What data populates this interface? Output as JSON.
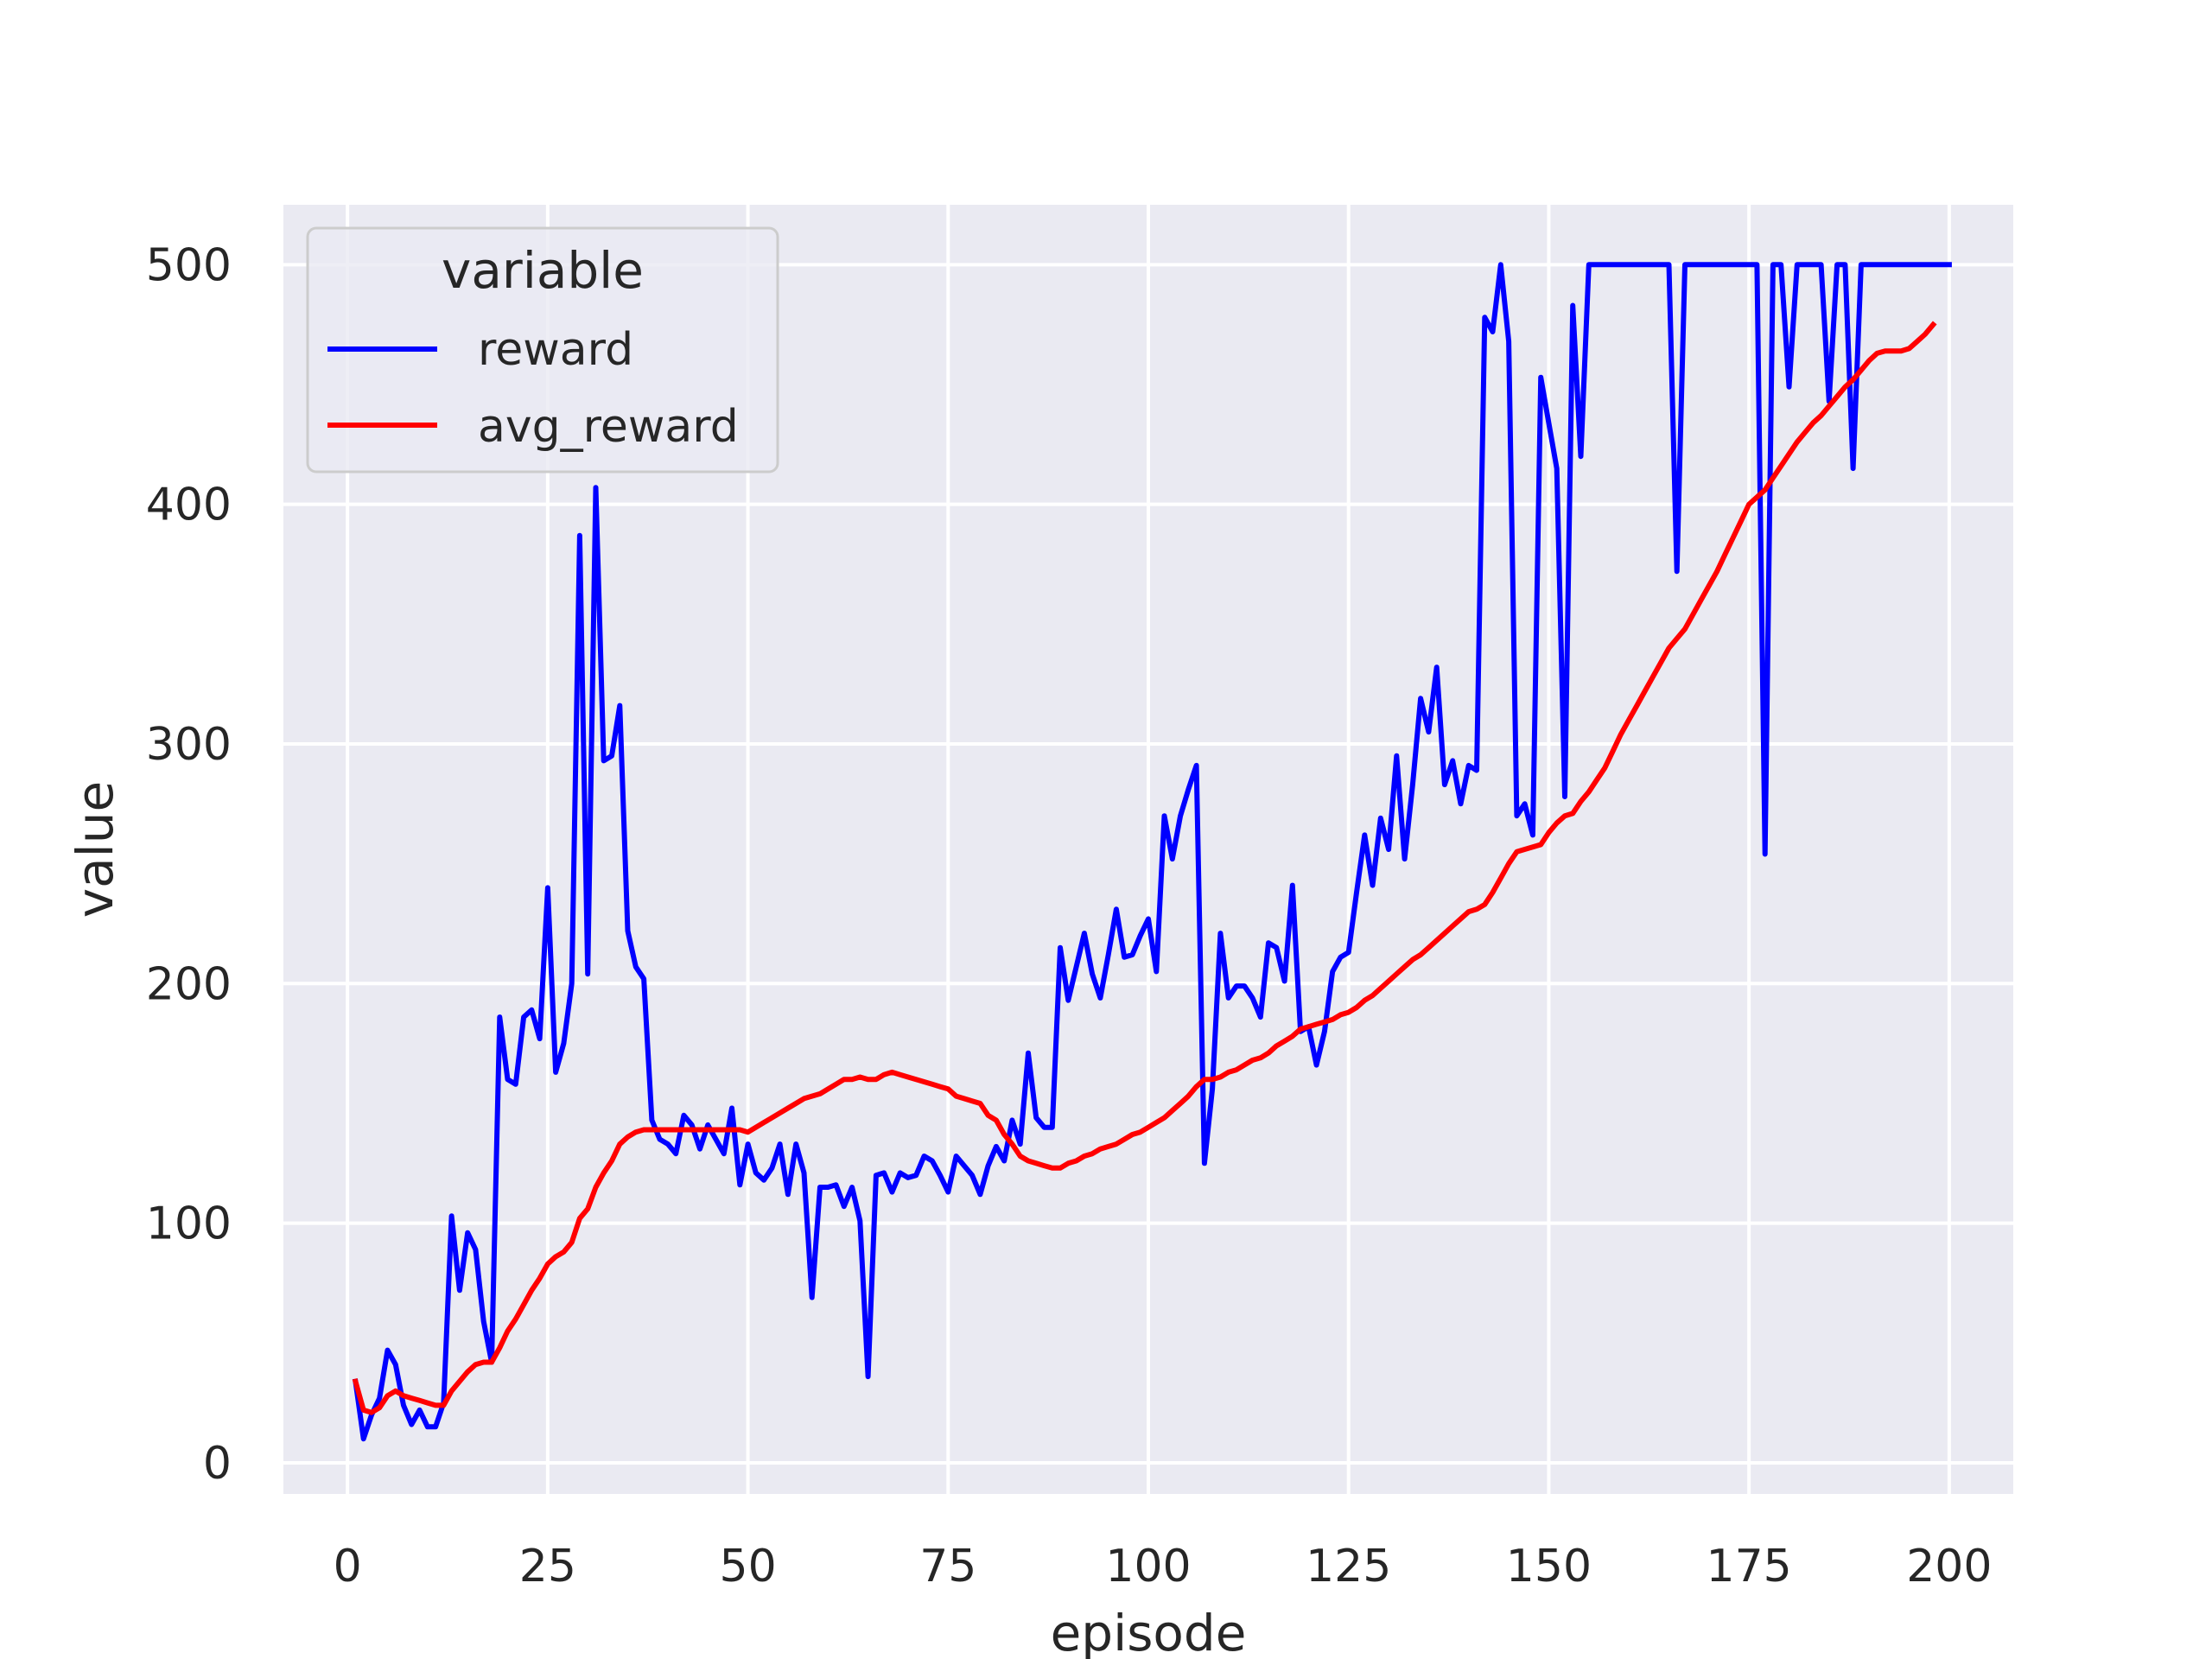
{
  "chart_data": {
    "type": "line",
    "title": "",
    "xlabel": "episode",
    "ylabel": "value",
    "xlim": [
      -8,
      208
    ],
    "ylim": [
      -13,
      525
    ],
    "xticks": [
      0,
      25,
      50,
      75,
      100,
      125,
      150,
      175,
      200
    ],
    "yticks": [
      0,
      100,
      200,
      300,
      400,
      500
    ],
    "grid": true,
    "legend": {
      "title": "variable",
      "placement": "top-left",
      "entries": [
        "reward",
        "avg_reward"
      ]
    },
    "series": [
      {
        "name": "reward",
        "color": "#0000ff",
        "x_start": 1,
        "values": [
          34,
          10,
          20,
          27,
          47,
          41,
          24,
          16,
          22,
          15,
          15,
          25,
          103,
          72,
          96,
          89,
          59,
          42,
          186,
          160,
          158,
          186,
          189,
          177,
          240,
          163,
          175,
          200,
          387,
          204,
          407,
          293,
          295,
          316,
          222,
          207,
          202,
          143,
          135,
          133,
          129,
          145,
          141,
          131,
          141,
          135,
          129,
          148,
          116,
          133,
          121,
          118,
          123,
          133,
          112,
          133,
          121,
          69,
          115,
          115,
          116,
          107,
          115,
          101,
          36,
          120,
          121,
          113,
          121,
          119,
          120,
          128,
          126,
          120,
          113,
          128,
          124,
          120,
          112,
          124,
          132,
          126,
          143,
          133,
          171,
          144,
          140,
          140,
          215,
          193,
          207,
          221,
          204,
          194,
          212,
          231,
          211,
          212,
          220,
          227,
          205,
          270,
          252,
          270,
          281,
          291,
          125,
          156,
          221,
          194,
          199,
          199,
          194,
          186,
          217,
          215,
          201,
          241,
          180,
          182,
          166,
          180,
          205,
          211,
          213,
          238,
          262,
          241,
          269,
          256,
          295,
          252,
          283,
          319,
          305,
          332,
          283,
          293,
          275,
          291,
          289,
          478,
          472,
          500,
          468,
          270,
          275,
          262,
          453,
          434,
          415,
          278,
          483,
          420,
          500,
          500,
          500,
          500,
          500,
          500,
          500,
          500,
          500,
          500,
          500,
          372,
          500,
          500,
          500,
          500,
          500,
          500,
          500,
          500,
          500,
          500,
          254,
          500,
          500,
          449,
          500,
          500,
          500,
          500,
          443,
          500,
          500,
          415,
          500,
          500,
          500,
          500,
          500,
          500,
          500,
          500,
          500,
          500,
          500,
          500
        ]
      },
      {
        "name": "avg_reward",
        "color": "#ff0000",
        "x_start": 1,
        "values": [
          34,
          22,
          21,
          23,
          28,
          30,
          28,
          27,
          26,
          25,
          24,
          24,
          30,
          34,
          38,
          41,
          42,
          42,
          48,
          55,
          60,
          66,
          72,
          77,
          83,
          86,
          88,
          92,
          102,
          106,
          115,
          121,
          126,
          133,
          136,
          138,
          139,
          139,
          139,
          139,
          139,
          139,
          139,
          139,
          139,
          139,
          139,
          139,
          139,
          138,
          140,
          142,
          144,
          146,
          148,
          150,
          152,
          153,
          154,
          156,
          158,
          160,
          160,
          161,
          160,
          160,
          162,
          163,
          162,
          161,
          160,
          159,
          158,
          157,
          156,
          153,
          152,
          151,
          150,
          145,
          143,
          137,
          133,
          128,
          126,
          125,
          124,
          123,
          123,
          125,
          126,
          128,
          129,
          131,
          132,
          133,
          135,
          137,
          138,
          140,
          142,
          144,
          147,
          150,
          153,
          157,
          160,
          160,
          161,
          163,
          164,
          166,
          168,
          169,
          171,
          174,
          176,
          178,
          181,
          182,
          183,
          184,
          185,
          187,
          188,
          190,
          193,
          195,
          198,
          201,
          204,
          207,
          210,
          212,
          215,
          218,
          221,
          224,
          227,
          230,
          231,
          233,
          238,
          244,
          250,
          255,
          256,
          257,
          258,
          263,
          267,
          270,
          271,
          276,
          280,
          285,
          290,
          297,
          304,
          310,
          316,
          322,
          328,
          334,
          340,
          344,
          348,
          354,
          360,
          366,
          372,
          379,
          386,
          393,
          400,
          403,
          406,
          411,
          416,
          421,
          426,
          430,
          434,
          437,
          441,
          445,
          449,
          452,
          456,
          460,
          463,
          464,
          464,
          464,
          465,
          468,
          471,
          475
        ]
      }
    ]
  }
}
